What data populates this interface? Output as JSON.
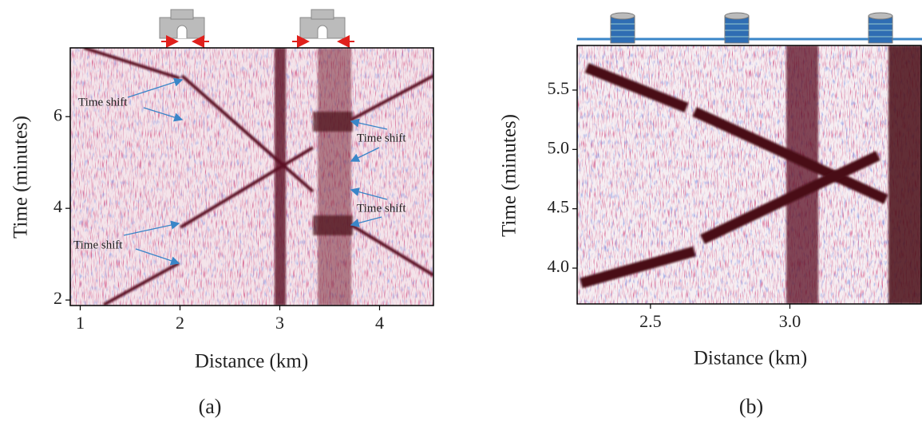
{
  "chart_data": [
    {
      "type": "image",
      "label": "(a)",
      "xlabel": "Distance (km)",
      "ylabel": "Time (minutes)",
      "xlim": [
        0.9,
        4.54
      ],
      "ylim": [
        1.88,
        7.5
      ],
      "xticks": [
        1,
        2,
        3,
        4
      ],
      "yticks": [
        2,
        4,
        6
      ],
      "annotations": [
        "Time shift",
        "Time shift",
        "Time shift",
        "Time shift"
      ]
    },
    {
      "type": "image",
      "label": "(b)",
      "xlabel": "Distance (km)",
      "ylabel": "Time (minutes)",
      "xlim": [
        2.237,
        3.471
      ],
      "ylim": [
        3.698,
        5.876
      ],
      "xticks": [
        2.5,
        {
          "value": 3,
          "label": "3.0"
        }
      ],
      "yticks": [
        {
          "value": 4,
          "label": "4.0"
        },
        4.5,
        {
          "value": 5,
          "label": "5.0"
        },
        5.5
      ]
    }
  ]
}
